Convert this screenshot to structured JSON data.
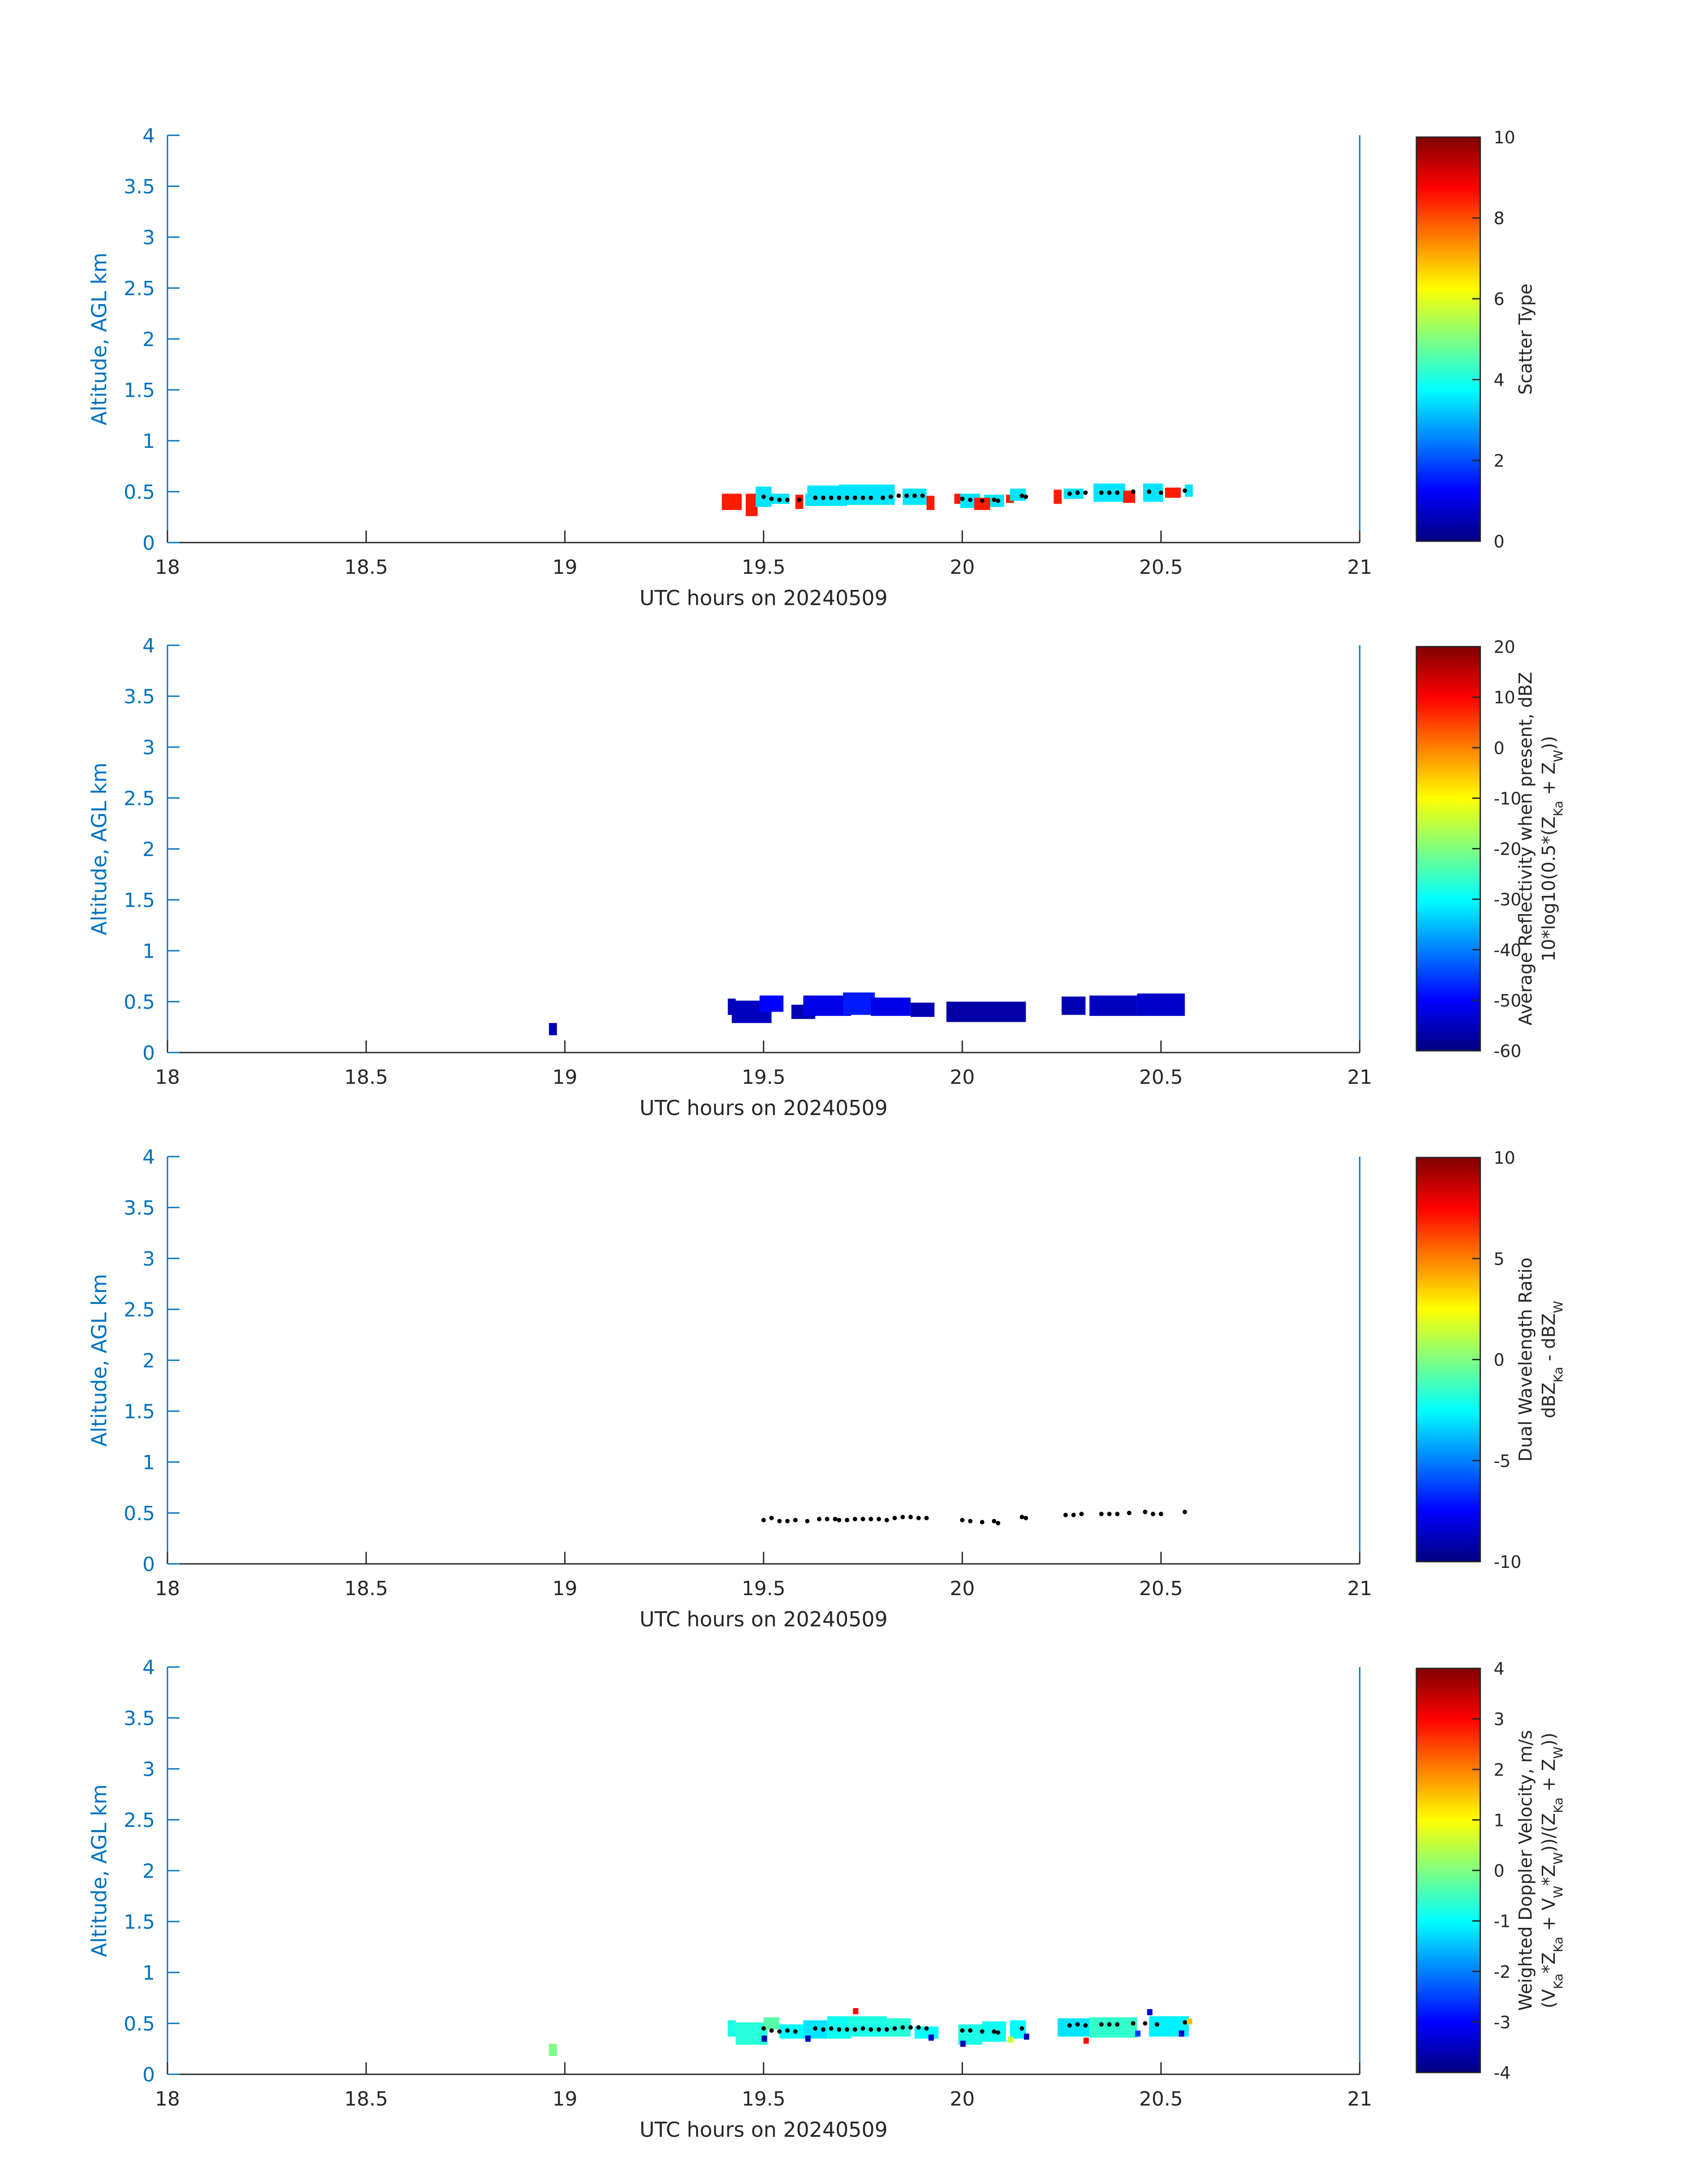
{
  "figure": {
    "xlabel": "UTC hours on 20240509",
    "ylabel": "Altitude, AGL km"
  },
  "colors": {
    "axis_color": "#0072bd",
    "text_color": "#262626",
    "colormap": "jet",
    "black_marker": "#000000"
  },
  "chart_data": [
    {
      "type": "heatmap",
      "panel": 1,
      "xlim": [
        18,
        21
      ],
      "ylim": [
        0,
        4
      ],
      "x_ticks": [
        "18",
        "18.5",
        "19",
        "19.5",
        "20",
        "20.5",
        "21"
      ],
      "y_ticks": [
        "0",
        "0.5",
        "1",
        "1.5",
        "2",
        "2.5",
        "3",
        "3.5",
        "4"
      ],
      "xlabel": "UTC hours on 20240509",
      "ylabel": "Altitude, AGL km",
      "colorbar": {
        "label_lines": [
          "Scatter Type"
        ],
        "clim": [
          0,
          10
        ],
        "ticks": [
          "0",
          "2",
          "4",
          "6",
          "8",
          "10"
        ]
      },
      "cells": [
        [
          19.42,
          0.4,
          0.05,
          0.16,
          8.5
        ],
        [
          19.47,
          0.37,
          0.03,
          0.22,
          8.5
        ],
        [
          19.5,
          0.45,
          0.04,
          0.2,
          3.5
        ],
        [
          19.54,
          0.43,
          0.05,
          0.1,
          3.5
        ],
        [
          19.59,
          0.4,
          0.02,
          0.14,
          8.5
        ],
        [
          19.62,
          0.42,
          0.03,
          0.12,
          3.5
        ],
        [
          19.66,
          0.46,
          0.1,
          0.2,
          3.5
        ],
        [
          19.76,
          0.47,
          0.14,
          0.2,
          3.5
        ],
        [
          19.88,
          0.45,
          0.06,
          0.16,
          3.5
        ],
        [
          19.92,
          0.39,
          0.02,
          0.14,
          8.5
        ],
        [
          19.99,
          0.43,
          0.02,
          0.1,
          8.5
        ],
        [
          20.02,
          0.41,
          0.05,
          0.14,
          3.5
        ],
        [
          20.04,
          0.38,
          0.02,
          0.12,
          8.5
        ],
        [
          20.08,
          0.41,
          0.05,
          0.12,
          3.5
        ],
        [
          20.06,
          0.38,
          0.02,
          0.12,
          8.5
        ],
        [
          20.12,
          0.43,
          0.02,
          0.08,
          8.5
        ],
        [
          20.14,
          0.47,
          0.04,
          0.12,
          3.5
        ],
        [
          20.24,
          0.45,
          0.02,
          0.14,
          8.5
        ],
        [
          20.28,
          0.48,
          0.05,
          0.1,
          3.5
        ],
        [
          20.37,
          0.49,
          0.08,
          0.18,
          3.5
        ],
        [
          20.42,
          0.45,
          0.03,
          0.12,
          8.5
        ],
        [
          20.48,
          0.49,
          0.05,
          0.18,
          3.5
        ],
        [
          20.53,
          0.49,
          0.04,
          0.1,
          8.5
        ],
        [
          20.57,
          0.51,
          0.02,
          0.12,
          3.5
        ]
      ],
      "black_points": [
        [
          19.5,
          0.45
        ],
        [
          19.52,
          0.43
        ],
        [
          19.54,
          0.42
        ],
        [
          19.56,
          0.42
        ],
        [
          19.59,
          0.42
        ],
        [
          19.63,
          0.44
        ],
        [
          19.65,
          0.44
        ],
        [
          19.67,
          0.44
        ],
        [
          19.69,
          0.44
        ],
        [
          19.71,
          0.44
        ],
        [
          19.73,
          0.44
        ],
        [
          19.75,
          0.44
        ],
        [
          19.77,
          0.44
        ],
        [
          19.8,
          0.44
        ],
        [
          19.82,
          0.45
        ],
        [
          19.84,
          0.46
        ],
        [
          19.86,
          0.46
        ],
        [
          19.88,
          0.46
        ],
        [
          19.9,
          0.46
        ],
        [
          20.0,
          0.43
        ],
        [
          20.02,
          0.42
        ],
        [
          20.05,
          0.41
        ],
        [
          20.08,
          0.42
        ],
        [
          20.09,
          0.41
        ],
        [
          20.15,
          0.46
        ],
        [
          20.16,
          0.45
        ],
        [
          20.27,
          0.48
        ],
        [
          20.29,
          0.49
        ],
        [
          20.31,
          0.49
        ],
        [
          20.35,
          0.49
        ],
        [
          20.37,
          0.49
        ],
        [
          20.39,
          0.49
        ],
        [
          20.43,
          0.5
        ],
        [
          20.47,
          0.5
        ],
        [
          20.5,
          0.49
        ],
        [
          20.56,
          0.51
        ]
      ]
    },
    {
      "type": "heatmap",
      "panel": 2,
      "xlim": [
        18,
        21
      ],
      "ylim": [
        0,
        4
      ],
      "x_ticks": [
        "18",
        "18.5",
        "19",
        "19.5",
        "20",
        "20.5",
        "21"
      ],
      "y_ticks": [
        "0",
        "0.5",
        "1",
        "1.5",
        "2",
        "2.5",
        "3",
        "3.5",
        "4"
      ],
      "xlabel": "UTC hours on 20240509",
      "ylabel": "Altitude, AGL km",
      "colorbar": {
        "label_lines": [
          "Average Reflectivity when present, dBZ",
          "10*log10(0.5*(Z",
          "Ka",
          " + Z",
          "W",
          "))"
        ],
        "clim": [
          -60,
          20
        ],
        "ticks": [
          "-60",
          "-50",
          "-40",
          "-30",
          "-20",
          "-10",
          "0",
          "10",
          "20"
        ]
      },
      "cells": [
        [
          18.97,
          0.23,
          0.02,
          0.12,
          -56
        ],
        [
          19.42,
          0.45,
          0.02,
          0.16,
          -56
        ],
        [
          19.47,
          0.4,
          0.1,
          0.22,
          -55
        ],
        [
          19.52,
          0.48,
          0.06,
          0.16,
          -50
        ],
        [
          19.6,
          0.4,
          0.06,
          0.14,
          -56
        ],
        [
          19.66,
          0.46,
          0.12,
          0.2,
          -52
        ],
        [
          19.74,
          0.48,
          0.08,
          0.22,
          -48
        ],
        [
          19.82,
          0.45,
          0.1,
          0.18,
          -52
        ],
        [
          19.9,
          0.42,
          0.06,
          0.14,
          -56
        ],
        [
          20.06,
          0.4,
          0.2,
          0.2,
          -57
        ],
        [
          20.28,
          0.46,
          0.06,
          0.18,
          -56
        ],
        [
          20.38,
          0.46,
          0.12,
          0.2,
          -55
        ],
        [
          20.5,
          0.47,
          0.12,
          0.22,
          -54
        ]
      ],
      "black_points": []
    },
    {
      "type": "heatmap",
      "panel": 3,
      "xlim": [
        18,
        21
      ],
      "ylim": [
        0,
        4
      ],
      "x_ticks": [
        "18",
        "18.5",
        "19",
        "19.5",
        "20",
        "20.5",
        "21"
      ],
      "y_ticks": [
        "0",
        "0.5",
        "1",
        "1.5",
        "2",
        "2.5",
        "3",
        "3.5",
        "4"
      ],
      "xlabel": "UTC hours on 20240509",
      "ylabel": "Altitude, AGL km",
      "colorbar": {
        "label_lines": [
          "Dual Wavelength Ratio",
          "dBZ",
          "Ka",
          " - dBZ",
          "W"
        ],
        "clim": [
          -10,
          10
        ],
        "ticks": [
          "-10",
          "-5",
          "0",
          "5",
          "10"
        ]
      },
      "cells": [],
      "black_points": [
        [
          19.5,
          0.43
        ],
        [
          19.52,
          0.45
        ],
        [
          19.54,
          0.42
        ],
        [
          19.56,
          0.42
        ],
        [
          19.58,
          0.43
        ],
        [
          19.61,
          0.42
        ],
        [
          19.64,
          0.44
        ],
        [
          19.66,
          0.44
        ],
        [
          19.68,
          0.44
        ],
        [
          19.69,
          0.43
        ],
        [
          19.71,
          0.43
        ],
        [
          19.73,
          0.44
        ],
        [
          19.75,
          0.44
        ],
        [
          19.77,
          0.44
        ],
        [
          19.79,
          0.44
        ],
        [
          19.81,
          0.43
        ],
        [
          19.83,
          0.45
        ],
        [
          19.85,
          0.46
        ],
        [
          19.87,
          0.46
        ],
        [
          19.89,
          0.45
        ],
        [
          19.91,
          0.45
        ],
        [
          20.0,
          0.43
        ],
        [
          20.02,
          0.42
        ],
        [
          20.05,
          0.41
        ],
        [
          20.08,
          0.42
        ],
        [
          20.09,
          0.4
        ],
        [
          20.15,
          0.46
        ],
        [
          20.16,
          0.45
        ],
        [
          20.26,
          0.48
        ],
        [
          20.28,
          0.48
        ],
        [
          20.3,
          0.49
        ],
        [
          20.35,
          0.49
        ],
        [
          20.37,
          0.49
        ],
        [
          20.39,
          0.49
        ],
        [
          20.42,
          0.5
        ],
        [
          20.46,
          0.51
        ],
        [
          20.48,
          0.49
        ],
        [
          20.5,
          0.49
        ],
        [
          20.56,
          0.51
        ]
      ]
    },
    {
      "type": "heatmap",
      "panel": 4,
      "xlim": [
        18,
        21
      ],
      "ylim": [
        0,
        4
      ],
      "x_ticks": [
        "18",
        "18.5",
        "19",
        "19.5",
        "20",
        "20.5",
        "21"
      ],
      "y_ticks": [
        "0",
        "0.5",
        "1",
        "1.5",
        "2",
        "2.5",
        "3",
        "3.5",
        "4"
      ],
      "xlabel": "UTC hours on 20240509",
      "ylabel": "Altitude, AGL km",
      "colorbar": {
        "label_lines": [
          "Weighted Doppler Velocity, m/s",
          "(V",
          "Ka",
          "*Z",
          "Ka",
          " + V",
          "W",
          "*Z",
          "W",
          "))/(Z",
          "Ka",
          " + Z",
          "W",
          "))"
        ],
        "clim": [
          -4,
          4
        ],
        "ticks": [
          "-4",
          "-3",
          "-2",
          "-1",
          "0",
          "1",
          "2",
          "3",
          "4"
        ]
      },
      "cells": [
        [
          18.97,
          0.24,
          0.02,
          0.12,
          0.0
        ],
        [
          19.42,
          0.45,
          0.02,
          0.16,
          -0.8
        ],
        [
          19.47,
          0.4,
          0.08,
          0.22,
          -0.7
        ],
        [
          19.52,
          0.5,
          0.04,
          0.12,
          -0.3
        ],
        [
          19.57,
          0.42,
          0.06,
          0.14,
          -1.0
        ],
        [
          19.63,
          0.44,
          0.06,
          0.18,
          -1.2
        ],
        [
          19.69,
          0.46,
          0.06,
          0.22,
          -0.9
        ],
        [
          19.76,
          0.47,
          0.1,
          0.2,
          -0.8
        ],
        [
          19.84,
          0.46,
          0.06,
          0.18,
          -0.7
        ],
        [
          19.91,
          0.41,
          0.06,
          0.12,
          -1.0
        ],
        [
          20.02,
          0.39,
          0.06,
          0.2,
          -0.8
        ],
        [
          20.08,
          0.42,
          0.06,
          0.2,
          -0.9
        ],
        [
          20.14,
          0.44,
          0.04,
          0.18,
          -1.0
        ],
        [
          20.28,
          0.46,
          0.08,
          0.18,
          -1.2
        ],
        [
          20.38,
          0.46,
          0.12,
          0.2,
          -0.6
        ],
        [
          20.52,
          0.47,
          0.1,
          0.2,
          -1.1
        ],
        [
          19.5,
          0.35,
          0.01,
          0.06,
          -3.6
        ],
        [
          19.61,
          0.35,
          0.01,
          0.06,
          -3.5
        ],
        [
          19.73,
          0.62,
          0.01,
          0.06,
          3.0
        ],
        [
          19.92,
          0.36,
          0.01,
          0.06,
          -3.4
        ],
        [
          20.0,
          0.3,
          0.01,
          0.06,
          -3.6
        ],
        [
          20.12,
          0.34,
          0.01,
          0.06,
          0.6
        ],
        [
          20.31,
          0.33,
          0.01,
          0.06,
          2.9
        ],
        [
          20.47,
          0.61,
          0.01,
          0.06,
          -3.3
        ],
        [
          20.55,
          0.4,
          0.01,
          0.06,
          -3.5
        ],
        [
          20.57,
          0.52,
          0.01,
          0.06,
          1.5
        ],
        [
          20.44,
          0.4,
          0.01,
          0.06,
          -2.5
        ],
        [
          20.16,
          0.37,
          0.01,
          0.06,
          -3.5
        ]
      ],
      "black_points": [
        [
          19.5,
          0.45
        ],
        [
          19.52,
          0.43
        ],
        [
          19.54,
          0.42
        ],
        [
          19.56,
          0.43
        ],
        [
          19.58,
          0.42
        ],
        [
          19.63,
          0.45
        ],
        [
          19.65,
          0.44
        ],
        [
          19.67,
          0.45
        ],
        [
          19.69,
          0.44
        ],
        [
          19.71,
          0.44
        ],
        [
          19.73,
          0.44
        ],
        [
          19.75,
          0.45
        ],
        [
          19.77,
          0.44
        ],
        [
          19.79,
          0.44
        ],
        [
          19.81,
          0.44
        ],
        [
          19.83,
          0.45
        ],
        [
          19.85,
          0.46
        ],
        [
          19.87,
          0.46
        ],
        [
          19.89,
          0.46
        ],
        [
          19.91,
          0.45
        ],
        [
          20.0,
          0.43
        ],
        [
          20.02,
          0.43
        ],
        [
          20.05,
          0.42
        ],
        [
          20.08,
          0.42
        ],
        [
          20.09,
          0.41
        ],
        [
          20.15,
          0.45
        ],
        [
          20.27,
          0.48
        ],
        [
          20.29,
          0.49
        ],
        [
          20.31,
          0.48
        ],
        [
          20.35,
          0.49
        ],
        [
          20.37,
          0.49
        ],
        [
          20.39,
          0.49
        ],
        [
          20.43,
          0.5
        ],
        [
          20.46,
          0.5
        ],
        [
          20.49,
          0.49
        ],
        [
          20.56,
          0.51
        ]
      ]
    }
  ]
}
